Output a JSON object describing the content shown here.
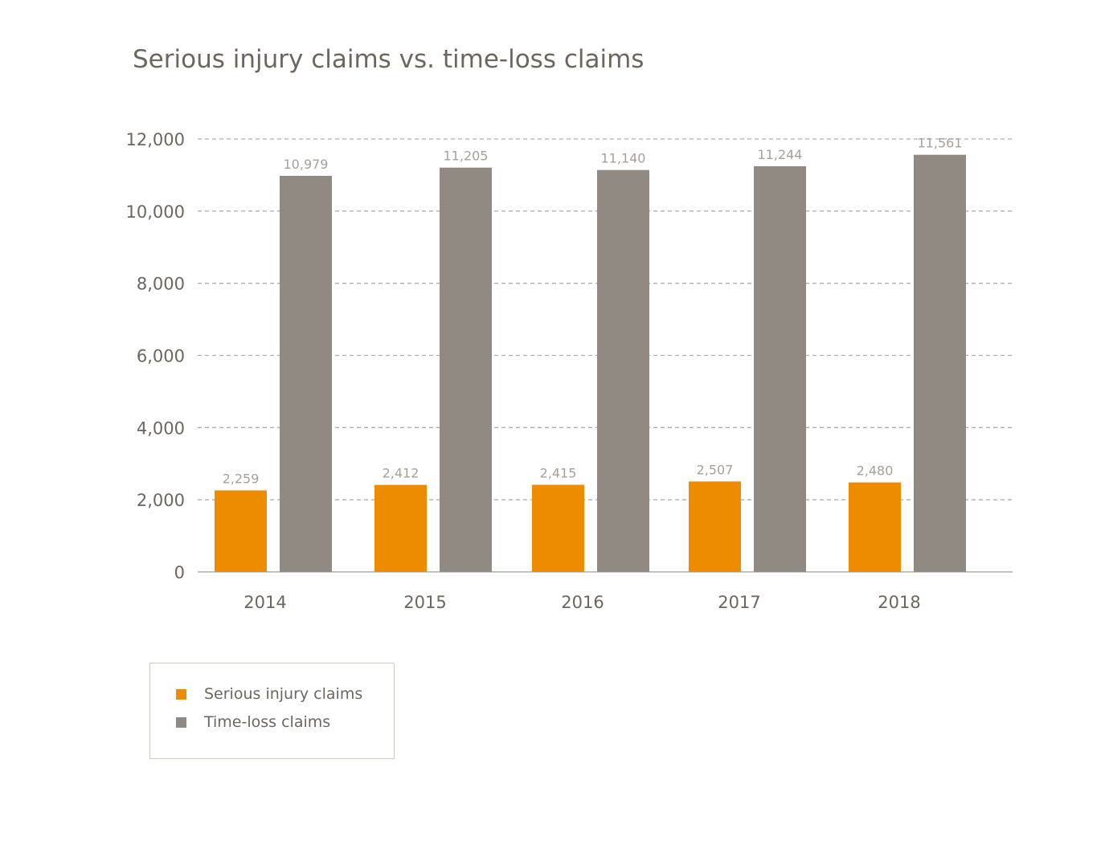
{
  "chart_data": {
    "type": "bar",
    "title": "Serious injury claims vs. time-loss claims",
    "categories": [
      "2014",
      "2015",
      "2016",
      "2017",
      "2018"
    ],
    "series": [
      {
        "name": "Serious injury claims",
        "values": [
          2259,
          2412,
          2415,
          2507,
          2480
        ],
        "labels": [
          "2,259",
          "2,412",
          "2,415",
          "2,507",
          "2,480"
        ],
        "color": "#ee8c00"
      },
      {
        "name": "Time-loss claims",
        "values": [
          10979,
          11205,
          11140,
          11244,
          11561
        ],
        "labels": [
          "10,979",
          "11,205",
          "11,140",
          "11,244",
          "11,561"
        ],
        "color": "#918a83"
      }
    ],
    "ylim": [
      0,
      12000
    ],
    "yticks": [
      0,
      2000,
      4000,
      6000,
      8000,
      10000,
      12000
    ],
    "ytick_labels": [
      "0",
      "2,000",
      "4,000",
      "6,000",
      "8,000",
      "10,000",
      "12,000"
    ],
    "grid": "horizontal dashed",
    "legend_position": "bottom-left"
  }
}
